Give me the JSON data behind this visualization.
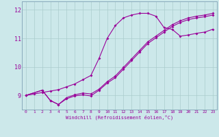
{
  "xlabel": "Windchill (Refroidissement éolien,°C)",
  "background_color": "#cce8ea",
  "grid_color": "#aacccc",
  "line_color": "#990099",
  "xlim": [
    -0.5,
    23.5
  ],
  "ylim": [
    8.5,
    12.3
  ],
  "xticks": [
    0,
    1,
    2,
    3,
    4,
    5,
    6,
    7,
    8,
    9,
    10,
    11,
    12,
    13,
    14,
    15,
    16,
    17,
    18,
    19,
    20,
    21,
    22,
    23
  ],
  "yticks": [
    9,
    10,
    11,
    12
  ],
  "line1_x": [
    0,
    1,
    2,
    3,
    4,
    5,
    6,
    7,
    8,
    9,
    10,
    11,
    12,
    13,
    14,
    15,
    16,
    17,
    18,
    19,
    20,
    21,
    22,
    23
  ],
  "line1_y": [
    9.0,
    9.05,
    9.1,
    9.15,
    9.2,
    9.3,
    9.4,
    9.55,
    9.7,
    10.3,
    11.0,
    11.45,
    11.72,
    11.82,
    11.88,
    11.88,
    11.78,
    11.38,
    11.32,
    11.08,
    11.12,
    11.18,
    11.22,
    11.32
  ],
  "line2_x": [
    0,
    2,
    3,
    4,
    5,
    6,
    7,
    8,
    9,
    10,
    11,
    12,
    13,
    14,
    15,
    16,
    17,
    18,
    19,
    20,
    21,
    22,
    23
  ],
  "line2_y": [
    9.0,
    9.18,
    8.82,
    8.68,
    8.92,
    9.02,
    9.08,
    9.05,
    9.22,
    9.48,
    9.68,
    9.98,
    10.28,
    10.58,
    10.88,
    11.08,
    11.28,
    11.48,
    11.62,
    11.72,
    11.78,
    11.82,
    11.88
  ],
  "line3_x": [
    0,
    2,
    3,
    4,
    5,
    6,
    7,
    8,
    9,
    10,
    11,
    12,
    13,
    14,
    15,
    16,
    17,
    18,
    19,
    20,
    21,
    22,
    23
  ],
  "line3_y": [
    9.0,
    9.18,
    8.82,
    8.68,
    8.88,
    8.98,
    9.02,
    8.98,
    9.18,
    9.43,
    9.62,
    9.92,
    10.22,
    10.52,
    10.82,
    11.02,
    11.22,
    11.42,
    11.56,
    11.66,
    11.72,
    11.76,
    11.82
  ]
}
